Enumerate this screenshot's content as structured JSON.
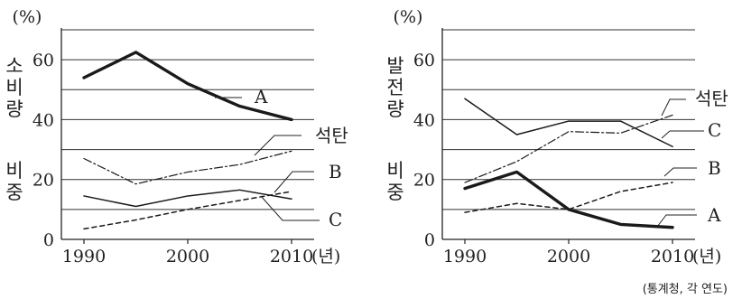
{
  "source_note": "(통계청, 각 연도)",
  "chart_data": [
    {
      "type": "line",
      "unit": "(%)",
      "xlabel": "",
      "year_unit": "(년)",
      "ylabel": "소비량 비중",
      "x": [
        1990,
        1995,
        2000,
        2005,
        2010
      ],
      "xticks": [
        "1990",
        "2000",
        "2010"
      ],
      "ylim": [
        0,
        70
      ],
      "yticks": [
        0,
        20,
        40,
        60
      ],
      "grid": true,
      "series": [
        {
          "name": "A",
          "style": "bold",
          "values": [
            54,
            62.5,
            52,
            44.5,
            40
          ]
        },
        {
          "name": "석탄",
          "style": "dashdot",
          "values": [
            27,
            18.5,
            22.5,
            25,
            29.5
          ]
        },
        {
          "name": "B",
          "style": "dashed",
          "values": [
            3.5,
            6.5,
            10,
            13,
            16
          ]
        },
        {
          "name": "C",
          "style": "solid",
          "values": [
            14.5,
            11,
            14.5,
            16.5,
            13.5
          ]
        }
      ]
    },
    {
      "type": "line",
      "unit": "(%)",
      "xlabel": "",
      "year_unit": "(년)",
      "ylabel": "발전량 비중",
      "x": [
        1990,
        1995,
        2000,
        2005,
        2010
      ],
      "xticks": [
        "1990",
        "2000",
        "2010"
      ],
      "ylim": [
        0,
        70
      ],
      "yticks": [
        0,
        20,
        40,
        60
      ],
      "grid": true,
      "series": [
        {
          "name": "석탄",
          "style": "dashdot",
          "values": [
            19,
            26,
            36,
            35.5,
            41.5
          ]
        },
        {
          "name": "C",
          "style": "solid",
          "values": [
            47,
            35,
            39.5,
            39.5,
            31
          ]
        },
        {
          "name": "B",
          "style": "dashed",
          "values": [
            9,
            12,
            10,
            16,
            19
          ]
        },
        {
          "name": "A",
          "style": "bold",
          "values": [
            17,
            22.5,
            10,
            5,
            4
          ]
        }
      ]
    }
  ]
}
